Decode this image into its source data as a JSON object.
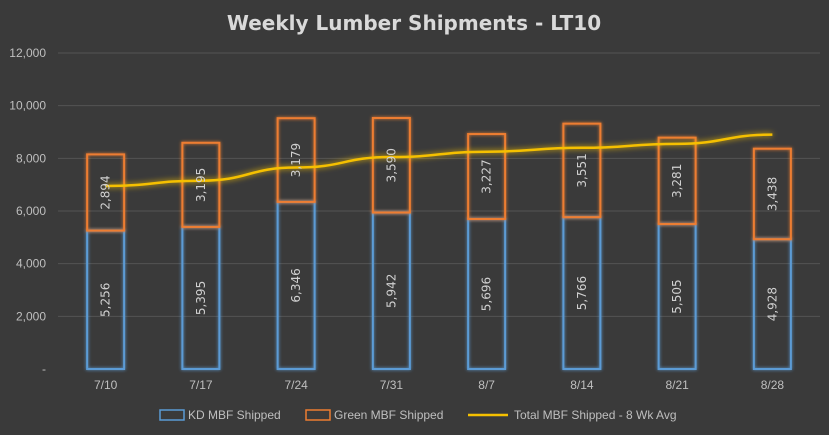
{
  "colors": {
    "kd": "#5b9bd5",
    "green": "#ed7d31",
    "avg": "#f5c000",
    "background": "#3a3a3a"
  },
  "chart_data": {
    "type": "bar",
    "stacked": true,
    "title": "Weekly Lumber Shipments - LT10",
    "xlabel": "",
    "ylabel": "",
    "ylim": [
      0,
      12000
    ],
    "yticks": [
      0,
      2000,
      4000,
      6000,
      8000,
      10000,
      12000
    ],
    "ytick_labels": [
      "-",
      "2,000",
      "4,000",
      "6,000",
      "8,000",
      "10,000",
      "12,000"
    ],
    "grid": true,
    "legend_position": "bottom",
    "categories": [
      "7/10",
      "7/17",
      "7/24",
      "7/31",
      "8/7",
      "8/14",
      "8/21",
      "8/28"
    ],
    "series": [
      {
        "name": "KD MBF Shipped",
        "kind": "bar",
        "values": [
          5256,
          5395,
          6346,
          5942,
          5696,
          5766,
          5505,
          4928
        ],
        "labels": [
          "5,256",
          "5,395",
          "6,346",
          "5,942",
          "5,696",
          "5,766",
          "5,505",
          "4,928"
        ]
      },
      {
        "name": "Green MBF Shipped",
        "kind": "bar",
        "values": [
          2894,
          3195,
          3179,
          3590,
          3227,
          3551,
          3281,
          3438
        ],
        "labels": [
          "2,894",
          "3,195",
          "3,179",
          "3,590",
          "3,227",
          "3,551",
          "3,281",
          "3,438"
        ]
      },
      {
        "name": "Total MBF Shipped - 8 Wk Avg",
        "kind": "line",
        "values": [
          6950,
          7150,
          7650,
          8050,
          8250,
          8400,
          8550,
          8900
        ]
      }
    ]
  }
}
